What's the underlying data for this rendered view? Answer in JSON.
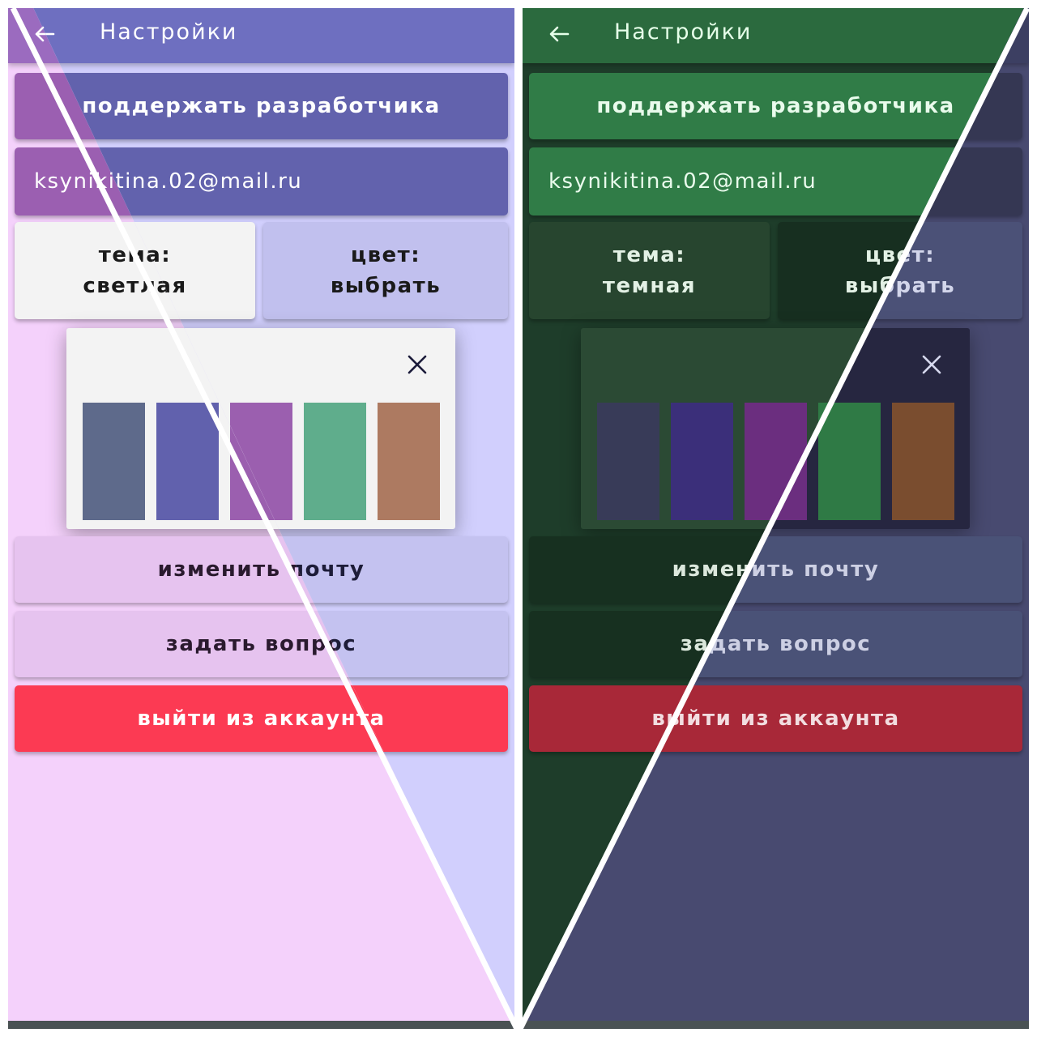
{
  "appbar": {
    "title": "Настройки"
  },
  "buttons": {
    "support": "поддержать разработчика",
    "change_email": "изменить почту",
    "ask_question": "задать вопрос",
    "logout": "выйти из аккаунта"
  },
  "account": {
    "email": "ksynikitina.02@mail.ru"
  },
  "light": {
    "theme_label": "тема:",
    "theme_value": "светлая",
    "color_label": "цвет:",
    "color_value": "выбрать",
    "swatches": [
      "#5e6a8b",
      "#6161ad",
      "#9b5faf",
      "#5fad8c",
      "#ad7a61"
    ]
  },
  "dark": {
    "theme_label": "тема:",
    "theme_value": "темная",
    "color_label": "цвет:",
    "color_value": "выбрать",
    "swatches": [
      "#383b58",
      "#3b2f7a",
      "#6b2e7f",
      "#2f7a45",
      "#7a4d2f"
    ]
  },
  "colors": {
    "light_accent_purple": "#9b5fb1",
    "light_accent_lavender": "#6262ad",
    "dark_accent_green": "#307c47",
    "dark_accent_navy": "#353753",
    "logout_light": "#fc3a53",
    "logout_dark": "#a82838"
  }
}
